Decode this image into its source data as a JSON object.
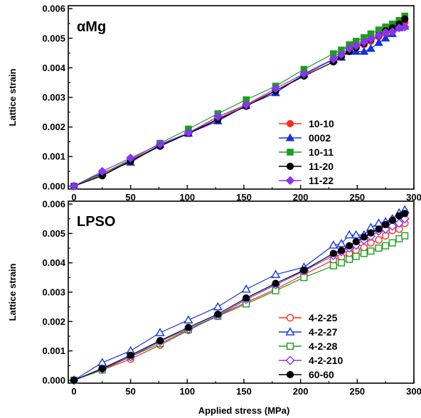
{
  "figure": {
    "xlabel": "Applied stress (MPa)"
  },
  "chart_data": [
    {
      "type": "line",
      "title": "αMg",
      "xlabel": "Applied stress (MPa)",
      "ylabel": "Lattice strain",
      "xlim": [
        -5,
        300
      ],
      "ylim": [
        -0.0001,
        0.0061
      ],
      "xticks": [
        0,
        50,
        100,
        150,
        200,
        250,
        300
      ],
      "yticks": [
        "0.000",
        "0.001",
        "0.002",
        "0.003",
        "0.004",
        "0.005",
        "0.006"
      ],
      "legend_position": "bottom-right",
      "series": [
        {
          "name": "10-10",
          "color": "#ff2a1a",
          "marker": "circle",
          "filled": true,
          "x": [
            0,
            25,
            50,
            76,
            101,
            127,
            152,
            178,
            203,
            229,
            236,
            243,
            249,
            256,
            262,
            269,
            275,
            281,
            287,
            292
          ],
          "y": [
            0,
            0.00038,
            0.00088,
            0.00138,
            0.0018,
            0.00228,
            0.00275,
            0.00323,
            0.00375,
            0.0043,
            0.00442,
            0.00458,
            0.0047,
            0.00478,
            0.0049,
            0.00505,
            0.00515,
            0.00528,
            0.0054,
            0.00553
          ]
        },
        {
          "name": "0002",
          "color": "#1430e6",
          "marker": "triangle",
          "filled": true,
          "x": [
            0,
            25,
            50,
            76,
            101,
            127,
            152,
            178,
            203,
            229,
            236,
            243,
            249,
            256,
            262,
            269,
            275,
            281,
            287,
            292
          ],
          "y": [
            0,
            0.00045,
            0.0008,
            0.0014,
            0.00178,
            0.0022,
            0.00272,
            0.00315,
            0.00378,
            0.00428,
            0.00435,
            0.00455,
            0.00455,
            0.00455,
            0.00465,
            0.00485,
            0.005,
            0.00515,
            0.00535,
            0.0054
          ]
        },
        {
          "name": "10-11",
          "color": "#1c9e1c",
          "marker": "square",
          "filled": true,
          "x": [
            0,
            25,
            50,
            76,
            101,
            127,
            152,
            178,
            203,
            229,
            236,
            243,
            249,
            256,
            262,
            269,
            275,
            281,
            287,
            292
          ],
          "y": [
            0,
            0.00042,
            0.0009,
            0.00145,
            0.00193,
            0.00245,
            0.00292,
            0.00338,
            0.00395,
            0.00448,
            0.0046,
            0.00478,
            0.0049,
            0.00502,
            0.00515,
            0.00528,
            0.00538,
            0.00548,
            0.0056,
            0.00575
          ]
        },
        {
          "name": "11-20",
          "color": "#000000",
          "marker": "circle",
          "filled": true,
          "x": [
            0,
            25,
            50,
            76,
            101,
            127,
            152,
            178,
            203,
            229,
            236,
            243,
            249,
            256,
            262,
            269,
            275,
            281,
            287,
            292
          ],
          "y": [
            0,
            0.00035,
            0.00085,
            0.00135,
            0.00178,
            0.00225,
            0.0027,
            0.00322,
            0.00372,
            0.0042,
            0.00438,
            0.00455,
            0.00468,
            0.00482,
            0.00495,
            0.0051,
            0.00525,
            0.00535,
            0.00548,
            0.00565
          ]
        },
        {
          "name": "11-22",
          "color": "#8833ee",
          "marker": "diamond",
          "filled": true,
          "x": [
            0,
            25,
            50,
            76,
            101,
            127,
            152,
            178,
            203,
            229,
            236,
            243,
            249,
            256,
            262,
            269,
            275,
            281,
            287,
            292
          ],
          "y": [
            0,
            0.0005,
            0.00095,
            0.00142,
            0.0018,
            0.00235,
            0.00275,
            0.0033,
            0.0038,
            0.0043,
            0.00445,
            0.00465,
            0.00475,
            0.00487,
            0.00497,
            0.0051,
            0.0052,
            0.00522,
            0.00535,
            0.00538
          ]
        }
      ]
    },
    {
      "type": "line",
      "title": "LPSO",
      "xlabel": "Applied stress (MPa)",
      "ylabel": "Lattice strain",
      "xlim": [
        -5,
        300
      ],
      "ylim": [
        -0.0001,
        0.0061
      ],
      "xticks": [
        0,
        50,
        100,
        150,
        200,
        250,
        300
      ],
      "yticks": [
        "0.000",
        "0.001",
        "0.002",
        "0.003",
        "0.004",
        "0.005",
        "0.006"
      ],
      "legend_position": "bottom-right",
      "series": [
        {
          "name": "4-2-25",
          "color": "#ff2a1a",
          "marker": "circle",
          "filled": false,
          "x": [
            0,
            25,
            50,
            76,
            101,
            127,
            152,
            178,
            203,
            229,
            236,
            243,
            249,
            256,
            262,
            269,
            275,
            281,
            287,
            292
          ],
          "y": [
            0,
            0.00035,
            0.00072,
            0.0012,
            0.0017,
            0.0022,
            0.00265,
            0.0031,
            0.0036,
            0.0041,
            0.0042,
            0.00432,
            0.00443,
            0.00452,
            0.00468,
            0.00478,
            0.00492,
            0.0051,
            0.00515,
            0.00535
          ]
        },
        {
          "name": "4-2-27",
          "color": "#1430e6",
          "marker": "triangle",
          "filled": false,
          "x": [
            0,
            25,
            50,
            76,
            101,
            127,
            152,
            178,
            203,
            229,
            236,
            243,
            249,
            256,
            262,
            269,
            275,
            281,
            287,
            292
          ],
          "y": [
            0,
            0.0006,
            0.001,
            0.00162,
            0.00205,
            0.0025,
            0.0031,
            0.0036,
            0.00385,
            0.0046,
            0.00465,
            0.00495,
            0.00495,
            0.00495,
            0.0052,
            0.00535,
            0.0054,
            0.0055,
            0.0057,
            0.0058
          ]
        },
        {
          "name": "4-2-28",
          "color": "#1c9e1c",
          "marker": "square",
          "filled": false,
          "x": [
            0,
            25,
            50,
            76,
            101,
            127,
            152,
            178,
            203,
            229,
            236,
            243,
            249,
            256,
            262,
            269,
            275,
            281,
            287,
            292
          ],
          "y": [
            0,
            0.00035,
            0.0008,
            0.00125,
            0.00172,
            0.00218,
            0.0026,
            0.00305,
            0.0035,
            0.0039,
            0.004,
            0.00412,
            0.00422,
            0.00432,
            0.0044,
            0.0045,
            0.00458,
            0.00468,
            0.00482,
            0.00492
          ]
        },
        {
          "name": "4-2-210",
          "color": "#8833ee",
          "marker": "diamond",
          "filled": false,
          "x": [
            0,
            25,
            50,
            76,
            101,
            127,
            152,
            178,
            203,
            229,
            236,
            243,
            249,
            256,
            262,
            269,
            275,
            281,
            287,
            292
          ],
          "y": [
            0,
            0.00038,
            0.0008,
            0.00132,
            0.00175,
            0.0022,
            0.00275,
            0.00325,
            0.00372,
            0.00425,
            0.00438,
            0.0045,
            0.0046,
            0.00478,
            0.0049,
            0.00508,
            0.00515,
            0.00525,
            0.00535,
            0.0055
          ]
        },
        {
          "name": "60-60",
          "color": "#000000",
          "marker": "circle",
          "filled": true,
          "x": [
            0,
            25,
            50,
            76,
            101,
            127,
            152,
            178,
            203,
            229,
            236,
            243,
            249,
            256,
            262,
            269,
            275,
            281,
            287,
            292
          ],
          "y": [
            0,
            0.0004,
            0.00085,
            0.00135,
            0.0018,
            0.00225,
            0.0028,
            0.0033,
            0.00375,
            0.00432,
            0.00442,
            0.00458,
            0.00472,
            0.00488,
            0.00502,
            0.00515,
            0.0053,
            0.00545,
            0.0056,
            0.00568
          ]
        }
      ]
    }
  ]
}
